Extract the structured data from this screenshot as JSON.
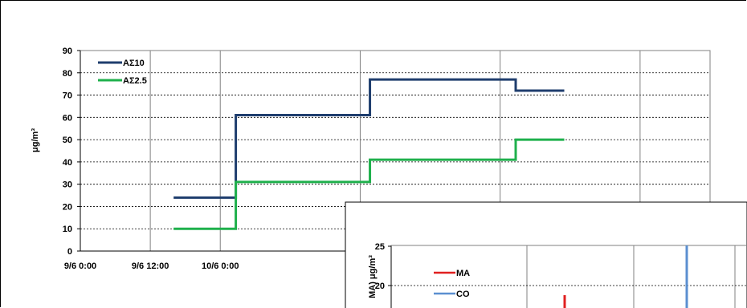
{
  "chart_data": [
    {
      "type": "line",
      "x_ticks": [
        "9/6 0:00",
        "9/6 12:00",
        "10/6 0:00"
      ],
      "ylabel": "μg/m³",
      "ylim": [
        0,
        90
      ],
      "y_ticks": [
        0,
        10,
        20,
        30,
        40,
        50,
        60,
        70,
        80,
        90
      ],
      "grid": true,
      "legend_position": "top-left",
      "series": [
        {
          "name": "ΑΣ10",
          "color": "#1f3e6e",
          "points": [
            [
              "9/6 16:00",
              24
            ],
            [
              "10/6 2:40",
              24
            ],
            [
              "10/6 2:40",
              61
            ],
            [
              "11/6 1:40",
              61
            ],
            [
              "11/6 1:40",
              77
            ],
            [
              "12/6 2:40",
              77
            ],
            [
              "12/6 2:40",
              72
            ],
            [
              "12/6 11:00",
              72
            ]
          ]
        },
        {
          "name": "ΑΣ2.5",
          "color": "#1fb04c",
          "points": [
            [
              "9/6 16:00",
              10
            ],
            [
              "10/6 2:40",
              10
            ],
            [
              "10/6 2:40",
              31
            ],
            [
              "11/6 1:40",
              31
            ],
            [
              "11/6 1:40",
              41
            ],
            [
              "12/6 2:40",
              41
            ],
            [
              "12/6 2:40",
              50
            ],
            [
              "12/6 11:00",
              50
            ]
          ]
        }
      ]
    },
    {
      "type": "line",
      "ylabel": "MA) μg/m³",
      "y_ticks": [
        20,
        25
      ],
      "grid": true,
      "legend_position": "top-left",
      "series": [
        {
          "name": "MA",
          "color": "#e02020"
        },
        {
          "name": "CO",
          "color": "#5b8fd0"
        }
      ]
    }
  ]
}
